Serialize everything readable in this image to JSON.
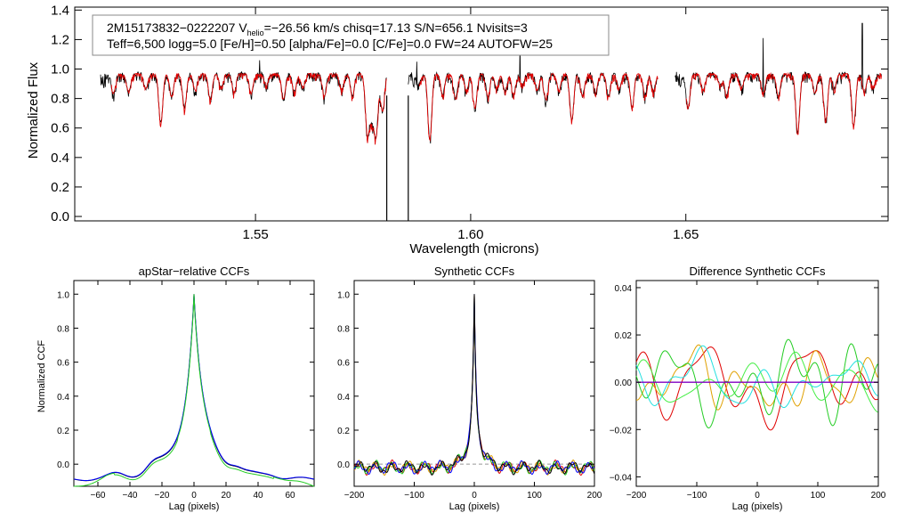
{
  "colors": {
    "observed": "#000000",
    "model": "#e00000",
    "ccf_black": "#000000",
    "ccf_blue": "#0000ff",
    "ccf_green": "#22cc22",
    "ccf_red": "#e00000",
    "ccf_orange": "#e0a000",
    "ccf_cyan": "#22e0e0",
    "ccf_purple": "#8000c0",
    "ccf_lime": "#44ee44"
  },
  "chart_data": [
    {
      "id": "spectrum",
      "type": "line",
      "title": "",
      "info_lines": {
        "line1_star": "2M15173832−0222207",
        "line1_v": "V",
        "line1_v_sub": "helio",
        "line1_rest": "=−26.56 km/s  chisq=17.13  S/N=656.1  Nvisits=3",
        "line2": "Teff=6,500 logg=5.0 [Fe/H]=0.50 [alpha/Fe]=0.0 [C/Fe]=0.0 FW=24 AUTOFW=25"
      },
      "xlabel": "Wavelength (microns)",
      "ylabel": "Normalized Flux",
      "xlim": [
        1.508,
        1.697
      ],
      "ylim": [
        -0.03,
        1.42
      ],
      "xticks": [
        "1.55",
        "1.60",
        "1.65"
      ],
      "xtick_values": [
        1.55,
        1.6,
        1.65
      ],
      "yticks": [
        "0.0",
        "0.2",
        "0.4",
        "0.6",
        "0.8",
        "1.0",
        "1.2",
        "1.4"
      ],
      "ytick_values": [
        0.0,
        0.2,
        0.4,
        0.6,
        0.8,
        1.0,
        1.2,
        1.4
      ],
      "chips": [
        [
          1.514,
          1.5805
        ],
        [
          1.5855,
          1.6435
        ],
        [
          1.6475,
          1.6955
        ]
      ],
      "continuum": 0.97,
      "absorption_lines": [
        [
          1.517,
          0.84
        ],
        [
          1.5205,
          0.85
        ],
        [
          1.5245,
          0.87
        ],
        [
          1.528,
          0.64
        ],
        [
          1.5305,
          0.82
        ],
        [
          1.5335,
          0.74
        ],
        [
          1.536,
          0.86
        ],
        [
          1.5395,
          0.8
        ],
        [
          1.542,
          0.88
        ],
        [
          1.545,
          0.85
        ],
        [
          1.549,
          0.84
        ],
        [
          1.5525,
          0.9
        ],
        [
          1.5565,
          0.8
        ],
        [
          1.559,
          0.85
        ],
        [
          1.561,
          0.88
        ],
        [
          1.566,
          0.82
        ],
        [
          1.57,
          0.87
        ],
        [
          1.5725,
          0.82
        ],
        [
          1.576,
          0.58
        ],
        [
          1.577,
          0.7
        ],
        [
          1.578,
          0.56
        ],
        [
          1.5795,
          0.72
        ],
        [
          1.588,
          0.9
        ],
        [
          1.5905,
          0.53
        ],
        [
          1.5935,
          0.83
        ],
        [
          1.5965,
          0.8
        ],
        [
          1.599,
          0.86
        ],
        [
          1.601,
          0.74
        ],
        [
          1.604,
          0.82
        ],
        [
          1.606,
          0.88
        ],
        [
          1.608,
          0.85
        ],
        [
          1.61,
          0.84
        ],
        [
          1.612,
          0.9
        ],
        [
          1.6155,
          0.86
        ],
        [
          1.6175,
          0.8
        ],
        [
          1.6205,
          0.86
        ],
        [
          1.6235,
          0.66
        ],
        [
          1.626,
          0.82
        ],
        [
          1.629,
          0.85
        ],
        [
          1.632,
          0.82
        ],
        [
          1.6345,
          0.87
        ],
        [
          1.6375,
          0.75
        ],
        [
          1.6405,
          0.83
        ],
        [
          1.6425,
          0.86
        ],
        [
          1.6505,
          0.74
        ],
        [
          1.654,
          0.86
        ],
        [
          1.658,
          0.89
        ],
        [
          1.6595,
          0.82
        ],
        [
          1.663,
          0.88
        ],
        [
          1.668,
          0.84
        ],
        [
          1.6715,
          0.82
        ],
        [
          1.676,
          0.58
        ],
        [
          1.68,
          0.84
        ],
        [
          1.6825,
          0.66
        ],
        [
          1.6845,
          0.88
        ],
        [
          1.689,
          0.62
        ],
        [
          1.6915,
          0.85
        ],
        [
          1.6935,
          0.88
        ]
      ],
      "emission_spikes": [
        [
          1.6115,
          1.17
        ],
        [
          1.668,
          1.21
        ],
        [
          1.691,
          1.31
        ],
        [
          1.5875,
          1.05
        ],
        [
          1.551,
          1.06
        ]
      ],
      "deep_dropouts": [
        1.5805,
        1.5855
      ]
    },
    {
      "id": "apstar-ccf",
      "type": "line",
      "title": "apStar−relative CCFs",
      "xlabel": "Lag (pixels)",
      "ylabel": "Normalized CCF",
      "xlim": [
        -75,
        75
      ],
      "ylim": [
        -0.13,
        1.08
      ],
      "xticks": [
        "−60",
        "−40",
        "−20",
        "0",
        "20",
        "40",
        "60"
      ],
      "xtick_values": [
        -60,
        -40,
        -20,
        0,
        20,
        40,
        60
      ],
      "yticks": [
        "0.0",
        "0.2",
        "0.4",
        "0.6",
        "0.8",
        "1.0"
      ],
      "ytick_values": [
        0.0,
        0.2,
        0.4,
        0.6,
        0.8,
        1.0
      ],
      "series": [
        {
          "name": "black",
          "color_key": "ccf_black",
          "offset": 0.0
        },
        {
          "name": "blue",
          "color_key": "ccf_blue",
          "offset": 0.006
        },
        {
          "name": "green",
          "color_key": "ccf_green",
          "offset": -0.012
        }
      ]
    },
    {
      "id": "synthetic-ccf",
      "type": "line",
      "title": "Synthetic CCFs",
      "xlabel": "Lag (pixels)",
      "ylabel": "",
      "xlim": [
        -200,
        200
      ],
      "ylim": [
        -0.13,
        1.08
      ],
      "xticks": [
        "−200",
        "−100",
        "0",
        "100",
        "200"
      ],
      "xtick_values": [
        -200,
        -100,
        0,
        100,
        200
      ],
      "yticks": [
        "0.0",
        "0.2",
        "0.4",
        "0.6",
        "0.8",
        "1.0"
      ],
      "ytick_values": [
        0.0,
        0.2,
        0.4,
        0.6,
        0.8,
        1.0
      ],
      "zero_line": true,
      "series": [
        {
          "name": "red",
          "color_key": "ccf_red"
        },
        {
          "name": "orange",
          "color_key": "ccf_orange"
        },
        {
          "name": "green",
          "color_key": "ccf_green"
        },
        {
          "name": "blue",
          "color_key": "ccf_blue"
        },
        {
          "name": "black",
          "color_key": "ccf_black"
        }
      ]
    },
    {
      "id": "difference-ccf",
      "type": "line",
      "title": "Difference Synthetic CCFs",
      "xlabel": "Lag (pixels)",
      "ylabel": "",
      "xlim": [
        -200,
        200
      ],
      "ylim": [
        -0.044,
        0.043
      ],
      "xticks": [
        "−200",
        "−100",
        "0",
        "100",
        "200"
      ],
      "xtick_values": [
        -200,
        -100,
        0,
        100,
        200
      ],
      "yticks": [
        "−0.04",
        "−0.02",
        "0.00",
        "0.02",
        "0.04"
      ],
      "ytick_values": [
        -0.04,
        -0.02,
        0.0,
        0.02,
        0.04
      ],
      "zero_line": true,
      "series": [
        {
          "name": "red",
          "color_key": "ccf_red",
          "seed": 11,
          "amp": 0.014
        },
        {
          "name": "orange",
          "color_key": "ccf_orange",
          "seed": 23,
          "amp": 0.011
        },
        {
          "name": "green",
          "color_key": "ccf_green",
          "seed": 37,
          "amp": 0.015
        },
        {
          "name": "lime",
          "color_key": "ccf_lime",
          "seed": 51,
          "amp": 0.012
        },
        {
          "name": "cyan",
          "color_key": "ccf_cyan",
          "seed": 67,
          "amp": 0.009
        }
      ]
    }
  ]
}
